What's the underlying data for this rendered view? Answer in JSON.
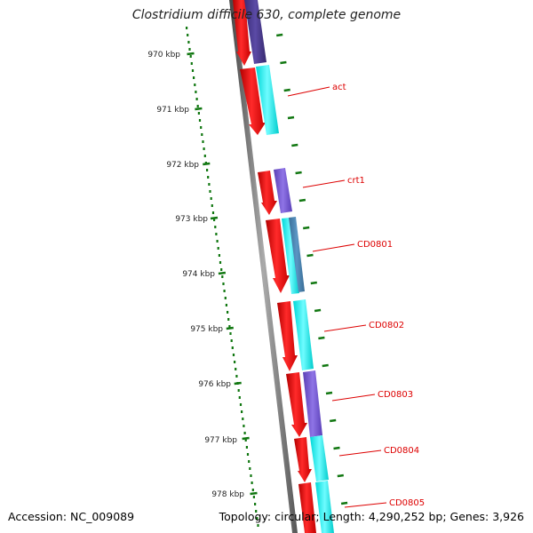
{
  "title": "Clostridium difficile 630, complete genome",
  "accession": "Accession: NC_009089",
  "summary": "Topology: circular; Length: 4,290,252 bp; Genes: 3,926",
  "scale_labels": [
    "970 kbp",
    "971 kbp",
    "972 kbp",
    "973 kbp",
    "974 kbp",
    "975 kbp",
    "976 kbp",
    "977 kbp",
    "978 kbp"
  ],
  "gene_labels": [
    "act",
    "crt1",
    "CD0801",
    "CD0802",
    "CD0803",
    "CD0804",
    "CD0805"
  ],
  "colors": {
    "cds": "#ff0000",
    "backbone": "#666666",
    "feature_cyan": "#00ffff",
    "feature_purple": "#7f5fd6",
    "feature_dark_purple": "#473c8b",
    "feature_steel": "#4682b4",
    "gc_skew": "#007700",
    "label": "#dd0000"
  }
}
